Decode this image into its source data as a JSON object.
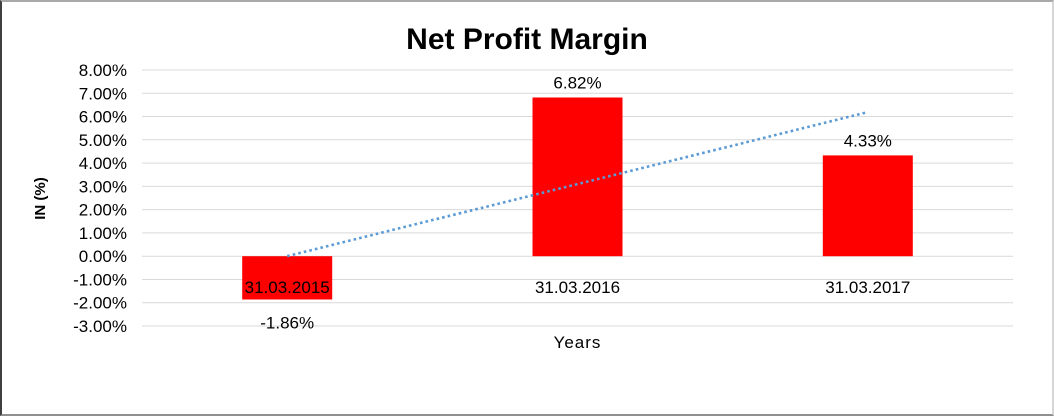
{
  "chart_data": {
    "type": "bar",
    "title": "Net Profit Margin",
    "xlabel": "Years",
    "ylabel": "IN (%)",
    "categories": [
      "31.03.2015",
      "31.03.2016",
      "31.03.2017"
    ],
    "series": [
      {
        "name": "Net Profit Margin",
        "values": [
          -1.86,
          6.82,
          4.33
        ]
      }
    ],
    "data_labels": [
      "-1.86%",
      "6.82%",
      "4.33%"
    ],
    "ylim": [
      -3,
      8
    ],
    "ytick_step": 1,
    "ytick_labels": [
      "8.00%",
      "7.00%",
      "6.00%",
      "5.00%",
      "4.00%",
      "3.00%",
      "2.00%",
      "1.00%",
      "0.00%",
      "-1.00%",
      "-2.00%",
      "-3.00%"
    ],
    "grid": true,
    "legend": "none",
    "colors": {
      "bar": "#ff0000",
      "gridline": "#d9d9d9",
      "trendline": "#5b9bd5",
      "text": "#000000",
      "background": "#ffffff"
    },
    "trendline": {
      "type": "linear",
      "style": "dotted"
    }
  }
}
